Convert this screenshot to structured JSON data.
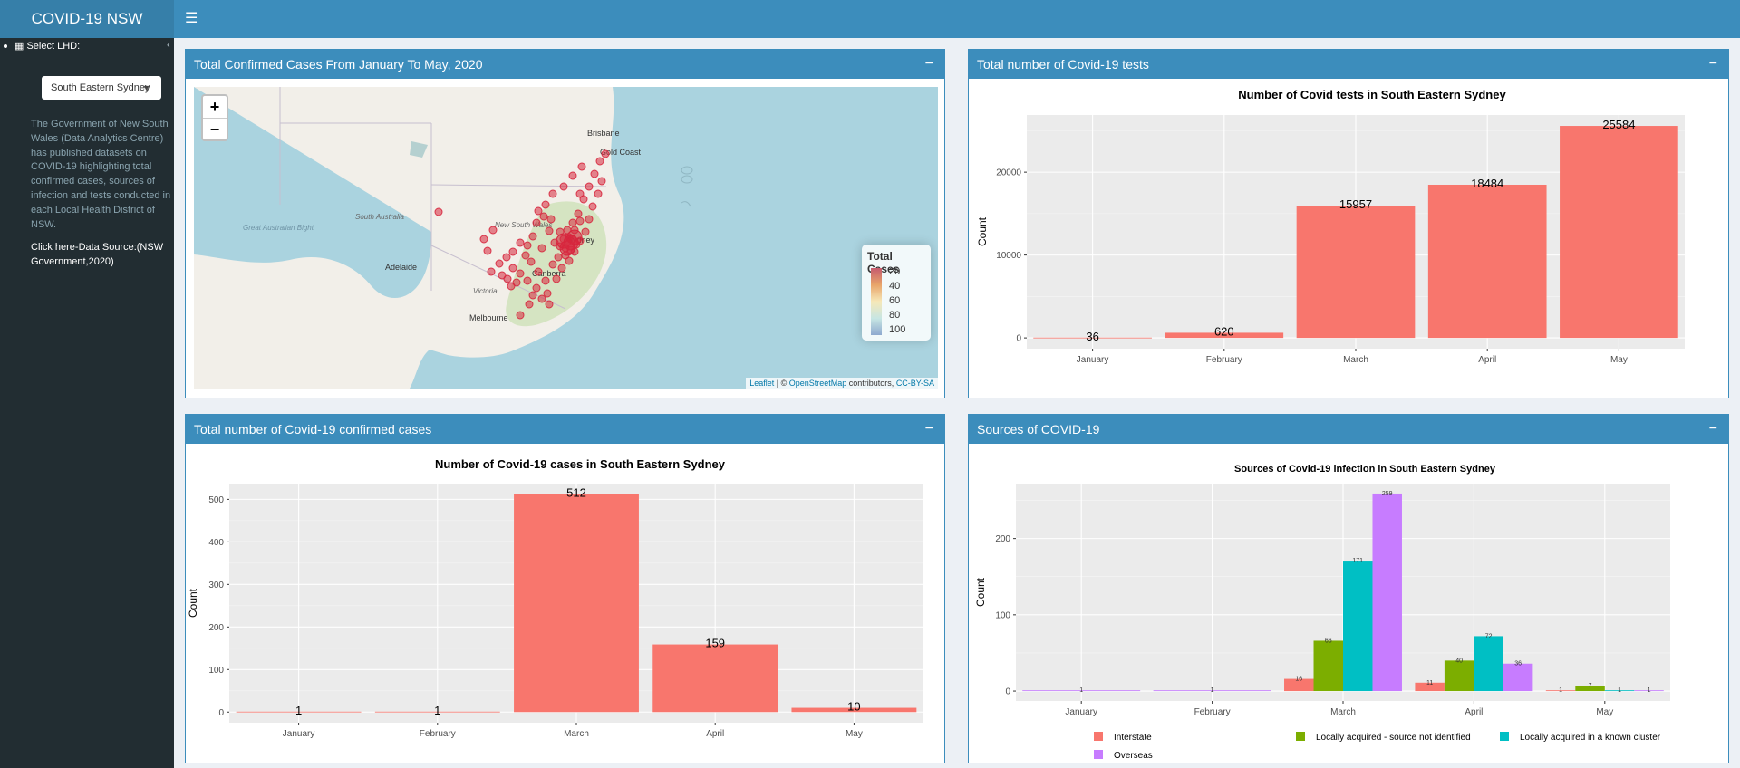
{
  "app": {
    "title": "COVID-19 NSW",
    "menu_icon": "hamburger-icon"
  },
  "sidebar": {
    "select_label": "Select LHD:",
    "select_value": "South Eastern Sydney",
    "about_text": "The Government of New South Wales (Data Analytics Centre) has published datasets on COVID-19 highlighting total confirmed cases, sources of infection and tests conducted in each Local Health District of NSW.",
    "link_text": "Click here-Data Source:(NSW Government,2020)"
  },
  "boxes": {
    "map": {
      "title": "Total Confirmed Cases From January To May, 2020"
    },
    "tests": {
      "title": "Total number of Covid-19 tests"
    },
    "cases": {
      "title": "Total number of Covid-19 confirmed cases"
    },
    "sources": {
      "title": "Sources of COVID-19"
    }
  },
  "map": {
    "zoom_in": "+",
    "zoom_out": "−",
    "place_labels": [
      "Brisbane",
      "Gold Coast",
      "South Australia",
      "New South Wales",
      "Great Australian Bight",
      "Adelaide",
      "Canberra",
      "Victoria",
      "Melbourne",
      "Sydney"
    ],
    "legend_title": "Total Cases",
    "legend_ticks": [
      "20",
      "40",
      "60",
      "80",
      "100"
    ],
    "attribution_leaflet": "Leaflet",
    "attribution_osm": "OpenStreetMap",
    "attribution_mid": " | © ",
    "attribution_tail": " contributors, ",
    "attribution_license": "CC-BY-SA",
    "marker_color": "#d7263d"
  },
  "chart_data": [
    {
      "type": "bar",
      "title": "Number of Covid tests in South Eastern Sydney",
      "ylabel": "Count",
      "categories": [
        "January",
        "February",
        "March",
        "April",
        "May"
      ],
      "values": [
        36,
        620,
        15957,
        18484,
        25584
      ],
      "ylim": [
        -1300,
        26900
      ],
      "yticks": [
        0,
        10000,
        20000
      ],
      "color": "#f8766d",
      "grid": true
    },
    {
      "type": "bar",
      "title": "Number of Covid-19 cases in South Eastern Sydney",
      "ylabel": "Count",
      "categories": [
        "January",
        "February",
        "March",
        "April",
        "May"
      ],
      "values": [
        1,
        1,
        512,
        159,
        10
      ],
      "ylim": [
        -25,
        537
      ],
      "yticks": [
        0,
        100,
        200,
        300,
        400,
        500
      ],
      "color": "#f8766d",
      "grid": true
    },
    {
      "type": "bar",
      "title": "Sources of Covid-19 infection in South Eastern Sydney",
      "ylabel": "Count",
      "categories": [
        "January",
        "February",
        "March",
        "April",
        "May"
      ],
      "ylim": [
        -13,
        272
      ],
      "yticks": [
        0,
        100,
        200
      ],
      "grid": true,
      "legend_position": "bottom",
      "series": [
        {
          "name": "Interstate",
          "color": "#f8766d",
          "values": [
            null,
            null,
            16,
            11,
            1
          ]
        },
        {
          "name": "Locally acquired - source not identified",
          "color": "#7cae00",
          "values": [
            null,
            null,
            66,
            40,
            7
          ]
        },
        {
          "name": "Locally acquired in a known cluster",
          "color": "#00bfc4",
          "values": [
            null,
            null,
            171,
            72,
            1
          ]
        },
        {
          "name": "Overseas",
          "color": "#c77cff",
          "values": [
            1,
            1,
            259,
            36,
            1
          ]
        }
      ]
    }
  ]
}
